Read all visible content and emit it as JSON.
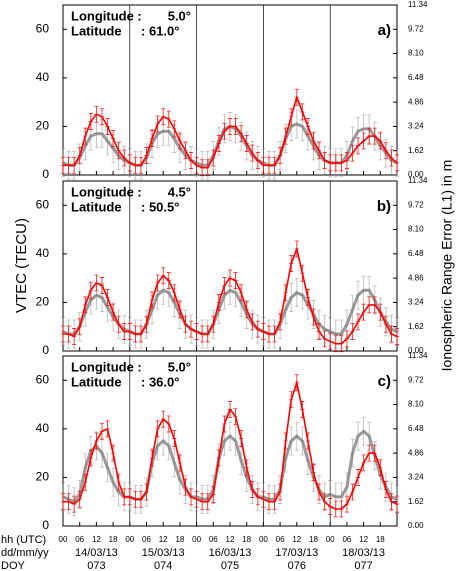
{
  "chart_data": [
    {
      "type": "line",
      "ylabel": "VTEC (TECU)",
      "y2label": "Ionospheric Range Error (L1) in m",
      "lon_label": "Longitude :",
      "lon_value": "5.0°",
      "lat_label": "Latitude",
      "lat_value": ": 61.0°",
      "panel_label": "a)",
      "xlim": [
        0,
        120
      ],
      "xticks": [
        0,
        6,
        12,
        18,
        24,
        30,
        36,
        42,
        48,
        54,
        60,
        66,
        72,
        78,
        84,
        90,
        96,
        102,
        108,
        114
      ],
      "vlines": [
        24,
        48,
        72,
        96
      ],
      "ylim": [
        0,
        70
      ],
      "yticks": [
        0,
        20,
        40,
        60
      ],
      "y2lim": [
        0,
        11.34
      ],
      "y2ticks": [
        {
          "value": 0,
          "label": "0.00"
        },
        1.62,
        3.24,
        4.86,
        6.48,
        {
          "value": 8.1,
          "label": "8.10"
        },
        9.72,
        11.34
      ],
      "x": [
        0,
        2,
        4,
        6,
        8,
        10,
        12,
        14,
        16,
        18,
        20,
        22,
        24,
        26,
        28,
        30,
        32,
        34,
        36,
        38,
        40,
        42,
        44,
        46,
        48,
        50,
        52,
        54,
        56,
        58,
        60,
        62,
        64,
        66,
        68,
        70,
        72,
        74,
        76,
        78,
        80,
        82,
        84,
        86,
        88,
        90,
        92,
        94,
        96,
        98,
        100,
        102,
        104,
        106,
        108,
        110,
        112,
        114,
        116,
        118,
        120
      ],
      "series": [
        {
          "color": "#808080",
          "values": [
            5,
            4,
            4,
            7,
            12,
            16,
            17,
            17,
            14,
            11,
            8,
            6,
            5,
            4,
            4,
            7,
            13,
            17,
            18,
            18,
            15,
            11,
            8,
            6,
            5,
            4,
            4,
            8,
            14,
            19,
            20,
            19,
            16,
            12,
            8,
            6,
            5,
            4,
            4,
            8,
            15,
            20,
            21,
            20,
            16,
            12,
            8,
            6,
            5,
            5,
            5,
            8,
            14,
            18,
            19,
            19,
            16,
            12,
            9,
            6,
            5
          ]
        },
        {
          "color": "#ff0000",
          "values": [
            4,
            4,
            4,
            8,
            16,
            22,
            25,
            24,
            20,
            15,
            10,
            7,
            5,
            4,
            4,
            8,
            15,
            21,
            24,
            23,
            19,
            14,
            10,
            6,
            4,
            3,
            3,
            7,
            13,
            18,
            20,
            20,
            17,
            13,
            9,
            6,
            4,
            4,
            4,
            8,
            16,
            24,
            32,
            26,
            20,
            14,
            10,
            6,
            5,
            5,
            5,
            6,
            9,
            12,
            14,
            16,
            16,
            14,
            10,
            7,
            5
          ]
        }
      ]
    },
    {
      "type": "line",
      "lon_label": "Longitude :",
      "lon_value": "4.5°",
      "lat_label": "Latitude",
      "lat_value": ": 50.5°",
      "panel_label": "b)",
      "xlim": [
        0,
        120
      ],
      "xticks": [
        0,
        6,
        12,
        18,
        24,
        30,
        36,
        42,
        48,
        54,
        60,
        66,
        72,
        78,
        84,
        90,
        96,
        102,
        108,
        114
      ],
      "vlines": [
        24,
        48,
        72,
        96
      ],
      "ylim": [
        0,
        70
      ],
      "yticks": [
        0,
        20,
        40,
        60
      ],
      "y2lim": [
        0,
        11.34
      ],
      "y2ticks": [
        {
          "value": 0,
          "label": "0.00"
        },
        1.62,
        3.24,
        4.86,
        6.48,
        {
          "value": 8.1,
          "label": "8.10"
        },
        9.72,
        11.34
      ],
      "x": [
        0,
        2,
        4,
        6,
        8,
        10,
        12,
        14,
        16,
        18,
        20,
        22,
        24,
        26,
        28,
        30,
        32,
        34,
        36,
        38,
        40,
        42,
        44,
        46,
        48,
        50,
        52,
        54,
        56,
        58,
        60,
        62,
        64,
        66,
        68,
        70,
        72,
        74,
        76,
        78,
        80,
        82,
        84,
        86,
        88,
        90,
        92,
        94,
        96,
        98,
        100,
        102,
        104,
        106,
        108,
        110,
        112,
        114,
        116,
        118,
        120
      ],
      "series": [
        {
          "color": "#808080",
          "values": [
            8,
            7,
            7,
            10,
            16,
            21,
            23,
            22,
            18,
            14,
            11,
            9,
            8,
            7,
            7,
            11,
            17,
            23,
            25,
            24,
            20,
            15,
            11,
            9,
            8,
            7,
            7,
            11,
            17,
            23,
            25,
            24,
            20,
            15,
            11,
            9,
            8,
            7,
            7,
            11,
            17,
            22,
            24,
            23,
            19,
            15,
            11,
            9,
            8,
            7,
            7,
            11,
            17,
            23,
            25,
            25,
            21,
            16,
            12,
            9,
            8
          ]
        },
        {
          "color": "#ff0000",
          "values": [
            7,
            7,
            6,
            10,
            19,
            25,
            28,
            27,
            22,
            16,
            11,
            8,
            8,
            7,
            7,
            11,
            21,
            28,
            31,
            29,
            24,
            17,
            11,
            9,
            8,
            7,
            7,
            11,
            20,
            27,
            30,
            29,
            24,
            17,
            12,
            9,
            8,
            7,
            7,
            12,
            24,
            36,
            42,
            32,
            22,
            14,
            8,
            5,
            4,
            3,
            3,
            5,
            8,
            12,
            16,
            19,
            19,
            16,
            11,
            7,
            6
          ]
        }
      ]
    },
    {
      "type": "line",
      "lon_label": "Longitude :",
      "lon_value": "5.0°",
      "lat_label": "Latitude",
      "lat_value": ": 36.0°",
      "panel_label": "c)",
      "xlim": [
        0,
        120
      ],
      "xticks": [
        {
          "value": 0,
          "label": "00"
        },
        {
          "value": 6,
          "label": "06"
        },
        12,
        18,
        {
          "value": 24,
          "label": "00"
        },
        {
          "value": 30,
          "label": "06"
        },
        {
          "value": 36,
          "label": "12"
        },
        {
          "value": 42,
          "label": "18"
        },
        {
          "value": 48,
          "label": "00"
        },
        {
          "value": 54,
          "label": "06"
        },
        {
          "value": 60,
          "label": "12"
        },
        {
          "value": 66,
          "label": "18"
        },
        {
          "value": 72,
          "label": "00"
        },
        {
          "value": 78,
          "label": "06"
        },
        {
          "value": 84,
          "label": "12"
        },
        {
          "value": 90,
          "label": "18"
        },
        {
          "value": 96,
          "label": "00"
        },
        {
          "value": 102,
          "label": "06"
        },
        {
          "value": 108,
          "label": "12"
        },
        {
          "value": 114,
          "label": "18"
        }
      ],
      "vlines": [
        24,
        48,
        72,
        96
      ],
      "ylim": [
        0,
        70
      ],
      "yticks": [
        0,
        20,
        40,
        60
      ],
      "y2lim": [
        0,
        11.34
      ],
      "y2ticks": [
        {
          "value": 0,
          "label": "0.00"
        },
        1.62,
        3.24,
        4.86,
        6.48,
        {
          "value": 8.1,
          "label": "8.10"
        },
        9.72,
        11.34
      ],
      "x": [
        0,
        2,
        4,
        6,
        8,
        10,
        12,
        14,
        16,
        18,
        20,
        22,
        24,
        26,
        28,
        30,
        32,
        34,
        36,
        38,
        40,
        42,
        44,
        46,
        48,
        50,
        52,
        54,
        56,
        58,
        60,
        62,
        64,
        66,
        68,
        70,
        72,
        74,
        76,
        78,
        80,
        82,
        84,
        86,
        88,
        90,
        92,
        94,
        96,
        98,
        100,
        102,
        104,
        106,
        108,
        110,
        112,
        114,
        116,
        118,
        120
      ],
      "series": [
        {
          "color": "#808080",
          "values": [
            12,
            11,
            10,
            13,
            24,
            31,
            33,
            30,
            24,
            18,
            14,
            12,
            12,
            11,
            11,
            14,
            26,
            33,
            35,
            33,
            26,
            19,
            15,
            12,
            12,
            11,
            11,
            15,
            28,
            35,
            37,
            35,
            27,
            20,
            15,
            12,
            12,
            11,
            11,
            15,
            28,
            35,
            37,
            35,
            27,
            20,
            15,
            12,
            13,
            12,
            12,
            16,
            30,
            37,
            39,
            37,
            29,
            21,
            16,
            12,
            11
          ]
        },
        {
          "color": "#ff0000",
          "values": [
            10,
            10,
            9,
            11,
            18,
            28,
            35,
            39,
            40,
            30,
            18,
            12,
            12,
            11,
            11,
            14,
            28,
            40,
            44,
            42,
            36,
            26,
            16,
            12,
            11,
            10,
            10,
            13,
            28,
            42,
            48,
            45,
            36,
            24,
            15,
            12,
            11,
            10,
            10,
            14,
            35,
            52,
            59,
            48,
            35,
            22,
            14,
            10,
            8,
            7,
            7,
            9,
            14,
            20,
            26,
            30,
            30,
            24,
            15,
            10,
            9
          ]
        }
      ],
      "row_labels": [
        "hh (UTC)",
        "dd/mm/yy",
        "DOY"
      ],
      "dates": [
        "14/03/13",
        "15/03/13",
        "16/03/13",
        "17/03/13",
        "18/03/13"
      ],
      "doy": [
        "073",
        "074",
        "075",
        "076",
        "077"
      ]
    }
  ]
}
